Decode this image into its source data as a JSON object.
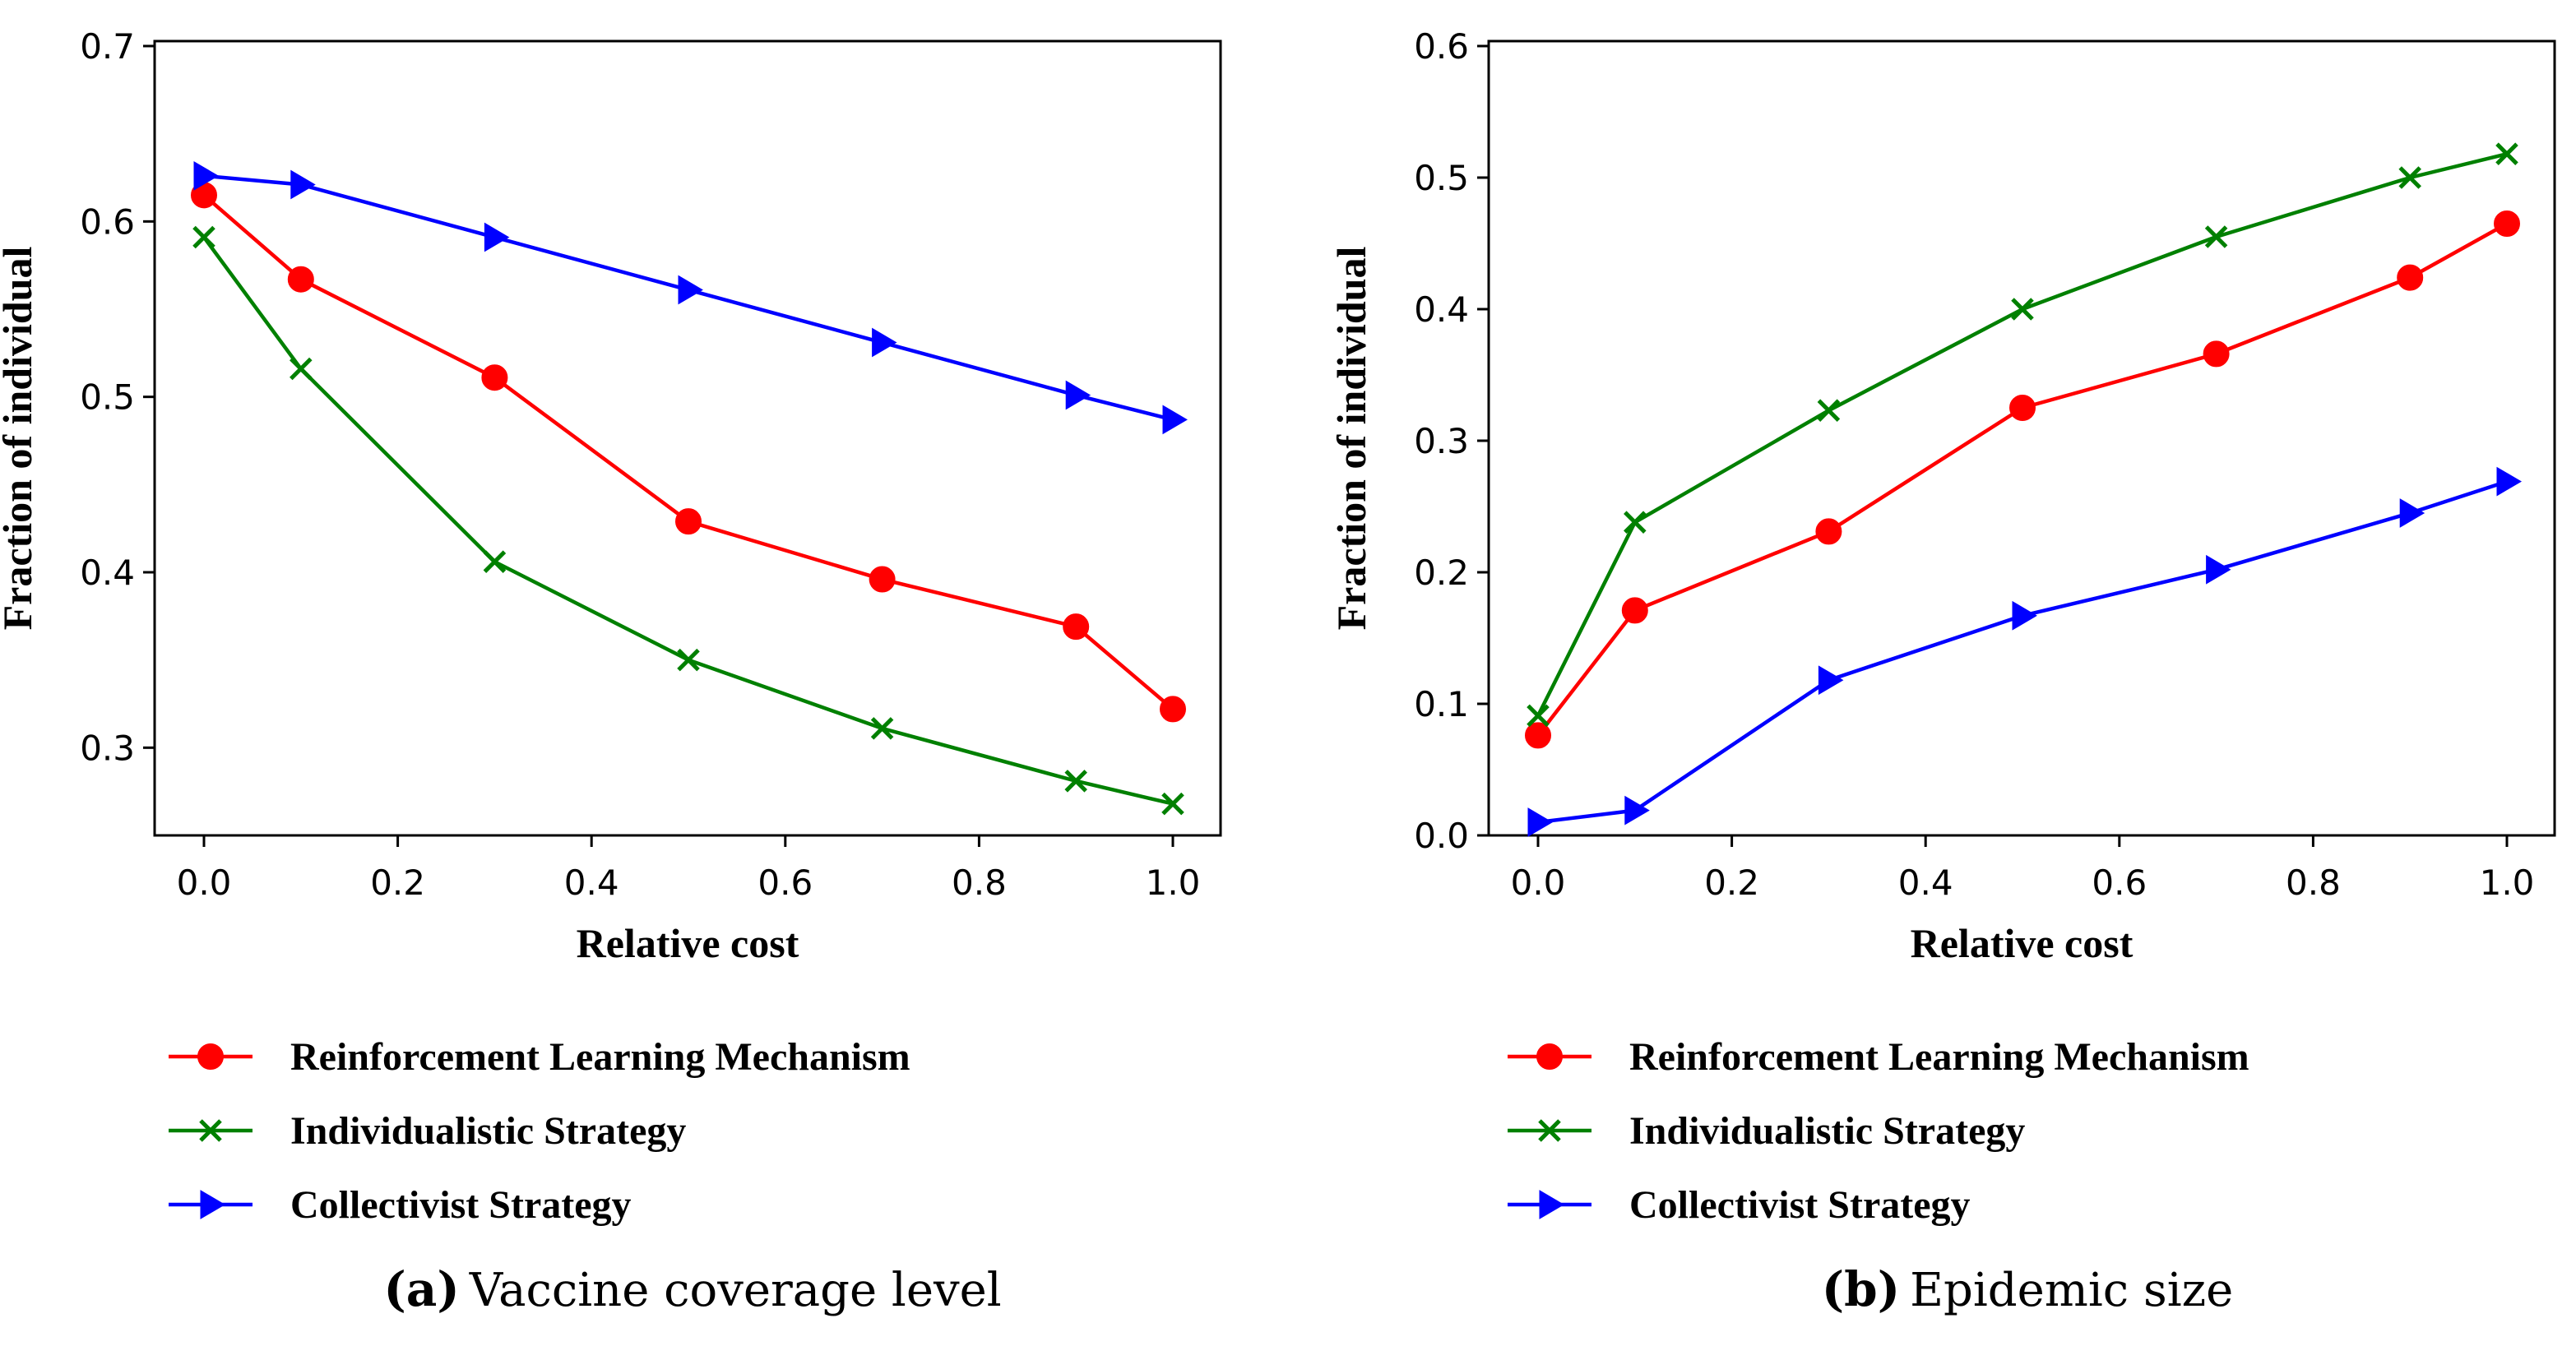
{
  "colors": {
    "Reinforcement Learning Mechanism": "#ff0000",
    "Individualistic Strategy": "#008000",
    "Collectivist Strategy": "#0000ff"
  },
  "chart_data": [
    {
      "type": "line",
      "caption_letter": "(a)",
      "caption_text": "Vaccine coverage level",
      "xlabel": "Relative cost",
      "ylabel": "Fraction of individual",
      "xlim": [
        0.0,
        1.0
      ],
      "ylim": [
        0.25,
        0.7
      ],
      "xticks": [
        "0.0",
        "0.2",
        "0.4",
        "0.6",
        "0.8",
        "1.0"
      ],
      "yticks": [
        "0.3",
        "0.4",
        "0.5",
        "0.6",
        "0.7"
      ],
      "x": [
        0.0,
        0.1,
        0.3,
        0.5,
        0.7,
        0.9,
        1.0
      ],
      "series": [
        {
          "name": "Reinforcement Learning Mechanism",
          "marker": "circle",
          "values": [
            0.615,
            0.567,
            0.511,
            0.429,
            0.396,
            0.369,
            0.322
          ]
        },
        {
          "name": "Individualistic Strategy",
          "marker": "x",
          "values": [
            0.591,
            0.516,
            0.406,
            0.35,
            0.311,
            0.281,
            0.268
          ]
        },
        {
          "name": "Collectivist Strategy",
          "marker": "triangle-right",
          "values": [
            0.626,
            0.621,
            0.591,
            0.561,
            0.531,
            0.501,
            0.487
          ]
        }
      ],
      "legend": [
        "Reinforcement Learning Mechanism",
        "Individualistic Strategy",
        "Collectivist Strategy"
      ]
    },
    {
      "type": "line",
      "caption_letter": "(b)",
      "caption_text": "Epidemic size",
      "xlabel": "Relative cost",
      "ylabel": "Fraction of individual",
      "xlim": [
        0.0,
        1.0
      ],
      "ylim": [
        0.0,
        0.6
      ],
      "xticks": [
        "0.0",
        "0.2",
        "0.4",
        "0.6",
        "0.8",
        "1.0"
      ],
      "yticks": [
        "0.0",
        "0.1",
        "0.2",
        "0.3",
        "0.4",
        "0.5",
        "0.6"
      ],
      "x": [
        0.0,
        0.1,
        0.3,
        0.5,
        0.7,
        0.9,
        1.0
      ],
      "series": [
        {
          "name": "Reinforcement Learning Mechanism",
          "marker": "circle",
          "values": [
            0.076,
            0.171,
            0.231,
            0.325,
            0.366,
            0.424,
            0.465
          ]
        },
        {
          "name": "Individualistic Strategy",
          "marker": "x",
          "values": [
            0.091,
            0.238,
            0.323,
            0.4,
            0.455,
            0.5,
            0.518
          ]
        },
        {
          "name": "Collectivist Strategy",
          "marker": "triangle-right",
          "values": [
            0.01,
            0.019,
            0.118,
            0.167,
            0.202,
            0.245,
            0.269
          ]
        }
      ],
      "legend": [
        "Reinforcement Learning Mechanism",
        "Individualistic Strategy",
        "Collectivist Strategy"
      ]
    }
  ]
}
